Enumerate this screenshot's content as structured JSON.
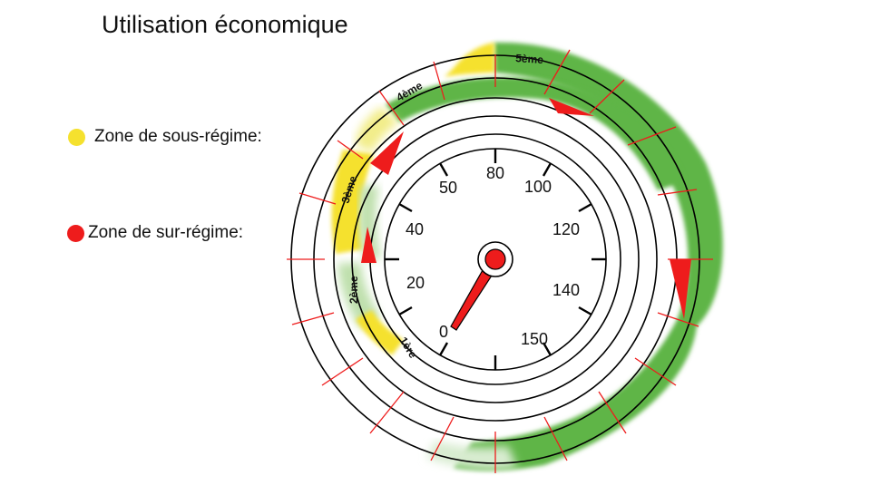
{
  "title": "Utilisation économique",
  "legend": {
    "under": {
      "label": "Zone de sous-régime:",
      "color": "#f5e12e"
    },
    "over": {
      "label": "Zone de sur-régime:",
      "color": "#ee1c1c"
    }
  },
  "speedometer": {
    "labels": [
      "0",
      "20",
      "40",
      "50",
      "80",
      "100",
      "120",
      "140",
      "150"
    ],
    "gears": [
      "1ère",
      "2ème",
      "3ème",
      "4ème",
      "5ème"
    ]
  },
  "colors": {
    "band_green": "#5fb547",
    "band_yellow": "#f5e12e",
    "marker_red": "#ee1c1c",
    "radial_lines": "#ee1c1c",
    "needle": "#ee1c1c"
  }
}
